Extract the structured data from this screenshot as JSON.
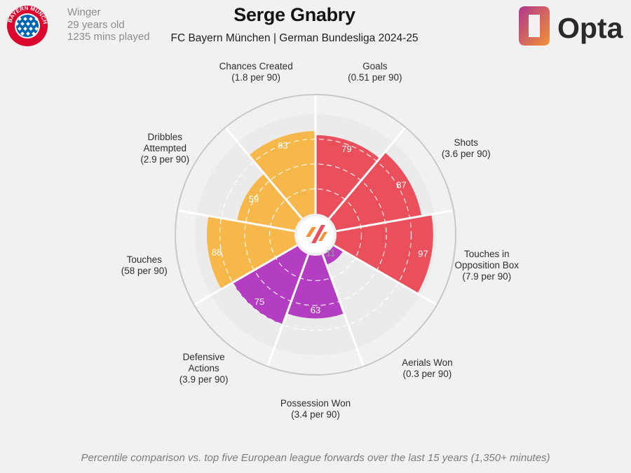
{
  "header": {
    "player_name": "Serge Gnabry",
    "subtitle": "FC Bayern München | German Bundesliga 2024-25",
    "position": "Winger",
    "age": "29 years old",
    "minutes": "1235 mins played",
    "club_crest_text": "FC BAYERN MÜNCHEN",
    "brand_logo_text": "Opta"
  },
  "colors": {
    "attacking": "#e9505c",
    "possession": "#f6b84a",
    "defending": "#b43ec2",
    "background": "#f1f1f1",
    "ring": "#c8c8c8",
    "opta_orange": "#f39235",
    "opta_magenta": "#b0378d"
  },
  "chart_data": {
    "type": "polar-bar",
    "scale": [
      0,
      100
    ],
    "metrics": [
      {
        "label": "Goals",
        "per90": "(0.51 per 90)",
        "percentile": 79,
        "group": "attacking"
      },
      {
        "label": "Shots",
        "per90": "(3.6 per 90)",
        "percentile": 87,
        "group": "attacking"
      },
      {
        "label": "Touches in Opposition Box",
        "label_lines": [
          "Touches in",
          "Opposition Box"
        ],
        "per90": "(7.9 per 90)",
        "percentile": 97,
        "group": "attacking"
      },
      {
        "label": "Aerials Won",
        "per90": "(0.3 per 90)",
        "percentile": 11,
        "group": "defending"
      },
      {
        "label": "Possession Won",
        "per90": "(3.4 per 90)",
        "percentile": 63,
        "group": "defending"
      },
      {
        "label": "Defensive Actions",
        "label_lines": [
          "Defensive",
          "Actions"
        ],
        "per90": "(3.9 per 90)",
        "percentile": 75,
        "group": "defending"
      },
      {
        "label": "Touches",
        "per90": "(58 per 90)",
        "percentile": 88,
        "group": "possession"
      },
      {
        "label": "Dribbles Attempted",
        "label_lines": [
          "Dribbles",
          "Attempted"
        ],
        "per90": "(2.9 per 90)",
        "percentile": 59,
        "group": "possession"
      },
      {
        "label": "Chances Created",
        "per90": "(1.8 per 90)",
        "percentile": 83,
        "group": "possession"
      }
    ]
  },
  "footnote": "Percentile comparison vs. top five European league forwards over the last 15 years (1,350+ minutes)"
}
